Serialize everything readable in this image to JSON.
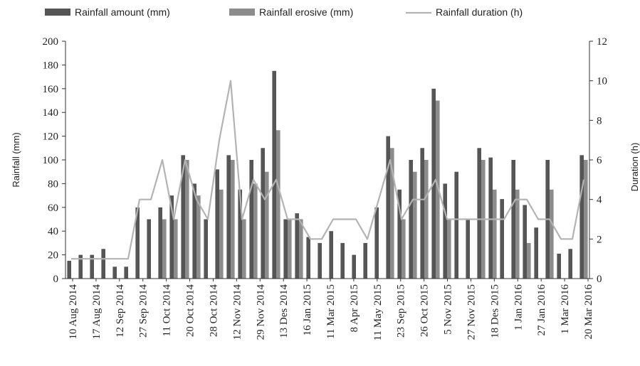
{
  "chart_data": {
    "type": "bar",
    "title": "",
    "ylabel": "Rainfall (mm)",
    "y2label": "Duration (h)",
    "ylim": [
      0,
      200
    ],
    "y2lim": [
      0,
      12
    ],
    "yticks": [
      0,
      20,
      40,
      60,
      80,
      100,
      120,
      140,
      160,
      180,
      200
    ],
    "y2ticks": [
      0,
      2,
      4,
      6,
      8,
      10,
      12
    ],
    "legend_position": "top",
    "grid": false,
    "colors": {
      "amount": "#555555",
      "erosive": "#8c8c8c",
      "duration": "#b3b3b3"
    },
    "x_labels": [
      "10 Aug 2014",
      "17 Aug 2014",
      "12 Sep 2014",
      "27 Sep 2014",
      "11 Oct 2014",
      "20 Oct 2014",
      "28 Oct 2014",
      "12 Nov 2014",
      "29 Nov 2014",
      "13 Des 2014",
      "16 Jan 2015",
      "11 Mar 2015",
      "8 Apr 2015",
      "11 May 2015",
      "23 Sep 2015",
      "26 Oct 2015",
      "5 Nov 2015",
      "27 Nov 2015",
      "18 Des 2015",
      "1 Jan 2016",
      "27 Jan 2016",
      "1 Mar 2016",
      "20 Mar 2016"
    ],
    "series": [
      {
        "name": "Rainfall amount (mm)",
        "type": "bar",
        "values": [
          15,
          20,
          20,
          25,
          10,
          10,
          60,
          50,
          60,
          70,
          104,
          80,
          50,
          92,
          104,
          75,
          100,
          110,
          175,
          50,
          55,
          35,
          30,
          40,
          30,
          20,
          30,
          60,
          120,
          75,
          100,
          110,
          160,
          80,
          90,
          50,
          110,
          102,
          67,
          100,
          62,
          43,
          100,
          21,
          25,
          104
        ]
      },
      {
        "name": "Rainfall erosive (mm)",
        "type": "bar",
        "values": [
          0,
          0,
          0,
          0,
          0,
          0,
          0,
          0,
          50,
          50,
          100,
          70,
          0,
          75,
          100,
          50,
          80,
          90,
          125,
          50,
          50,
          0,
          0,
          0,
          0,
          0,
          0,
          0,
          110,
          50,
          90,
          100,
          150,
          50,
          0,
          0,
          100,
          75,
          0,
          75,
          30,
          0,
          75,
          0,
          0,
          100
        ]
      },
      {
        "name": "Rainfall duration (h)",
        "type": "line",
        "axis": "right",
        "values": [
          1,
          1,
          1,
          1,
          1,
          1,
          4,
          4,
          6,
          3,
          6,
          4,
          3,
          7,
          10,
          3,
          5,
          4,
          5,
          3,
          3,
          2,
          2,
          3,
          3,
          3,
          2,
          4,
          6,
          3,
          4,
          4,
          5,
          3,
          3,
          3,
          3,
          3,
          3,
          4,
          4,
          3,
          3,
          2,
          2,
          5
        ]
      }
    ]
  }
}
